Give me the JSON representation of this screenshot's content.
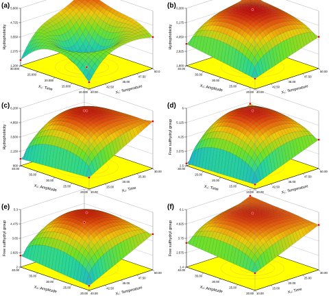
{
  "colors": {
    "floor": "#ffff00",
    "floor_contour": "#f2d23a",
    "frame": "#000000",
    "grid": "#9a9a9a",
    "point": "#d40000"
  },
  "chart_data": [
    {
      "type": "surface",
      "letter": "(a)",
      "zlabel": "Hydrophobicity",
      "xlabel": "X₂: Time",
      "ylabel": "X₁: Temperature",
      "zticks": [
        "1,200",
        "2,375",
        "3,550",
        "4,725",
        "5,900"
      ],
      "xticks": [
        "30.000",
        "25.000",
        "20.000",
        "15.000",
        "10.000"
      ],
      "yticks": [
        "40.00",
        "42.50",
        "45.00",
        "47.50",
        "50.0"
      ],
      "shape": "saddle",
      "peak": 0.97,
      "center": 0.0,
      "corners": [
        0.12,
        0.55,
        0.1,
        0.98
      ]
    },
    {
      "type": "surface",
      "letter": "(b)",
      "zlabel": "Hydrophobicity",
      "xlabel": "X₃: Amplitude",
      "ylabel": "X₁: Temperature",
      "zticks": [
        "1,800",
        "2,925",
        "4,050",
        "5,175",
        "6,300"
      ],
      "xticks": [
        "40.00",
        "35.00",
        "30.00",
        "25.00",
        "20.00"
      ],
      "yticks": [
        "40.00",
        "42.50",
        "45.00",
        "47.50",
        "50.00"
      ],
      "shape": "dome",
      "peak": 1.0,
      "corners": [
        0.18,
        0.55,
        0.38,
        0.9
      ]
    },
    {
      "type": "surface",
      "letter": "(c)",
      "zlabel": "Hydrophobicity",
      "xlabel": "X₃: Amplitude",
      "ylabel": "X₂: Time",
      "zticks": [
        "800",
        "2,150",
        "3,500",
        "4,850",
        "6,200"
      ],
      "xticks": [
        "40.00",
        "35.00",
        "30.00",
        "25.00",
        "20.00"
      ],
      "yticks": [
        "10.00",
        "15.00",
        "20.00",
        "25.00",
        "30.00"
      ],
      "shape": "dome",
      "peak": 0.98,
      "corners": [
        0.2,
        0.82,
        0.12,
        0.6
      ]
    },
    {
      "type": "surface",
      "letter": "(d)",
      "zlabel": "Free sulfhydryl group",
      "xlabel": "X₂: Time",
      "ylabel": "X₁: Temperature",
      "zticks": [
        "2.5",
        "3.375",
        "4.25",
        "5.125",
        "6"
      ],
      "xticks": [
        "30.00",
        "25.00",
        "20.00",
        "15.00",
        "10.00"
      ],
      "yticks": [
        "40.00",
        "42.50",
        "45.00",
        "47.50",
        "50.00"
      ],
      "shape": "dome",
      "peak": 0.98,
      "corners": [
        0.08,
        0.5,
        0.04,
        0.72
      ]
    },
    {
      "type": "surface",
      "letter": "(e)",
      "zlabel": "Free sulfhydryl group",
      "xlabel": "X₃: Amplitude",
      "ylabel": "X₁: Temperature",
      "zticks": [
        "2",
        "2.825",
        "3.65",
        "4.475",
        "5.3"
      ],
      "xticks": [
        "40.00",
        "35.00",
        "30.00",
        "25.00",
        "20.00"
      ],
      "yticks": [
        "40.00",
        "42.50",
        "45.00",
        "47.50",
        "50.00"
      ],
      "shape": "dome",
      "peak": 0.97,
      "corners": [
        0.08,
        0.62,
        0.2,
        0.42
      ]
    },
    {
      "type": "surface",
      "letter": "(f)",
      "zlabel": "Free sulfhydryl group",
      "xlabel": "X₃: Amplitude",
      "ylabel": "X₂: Time",
      "zticks": [
        "1.4",
        "2.575",
        "3.75",
        "4.925",
        "6.1"
      ],
      "xticks": [
        "40.00",
        "35.00",
        "30.00",
        "25.00",
        "20.00"
      ],
      "yticks": [
        "10.00",
        "15.00",
        "20.00",
        "25.00",
        "30.00"
      ],
      "shape": "dome",
      "peak": 0.96,
      "corners": [
        0.3,
        0.78,
        0.42,
        0.88
      ]
    }
  ]
}
